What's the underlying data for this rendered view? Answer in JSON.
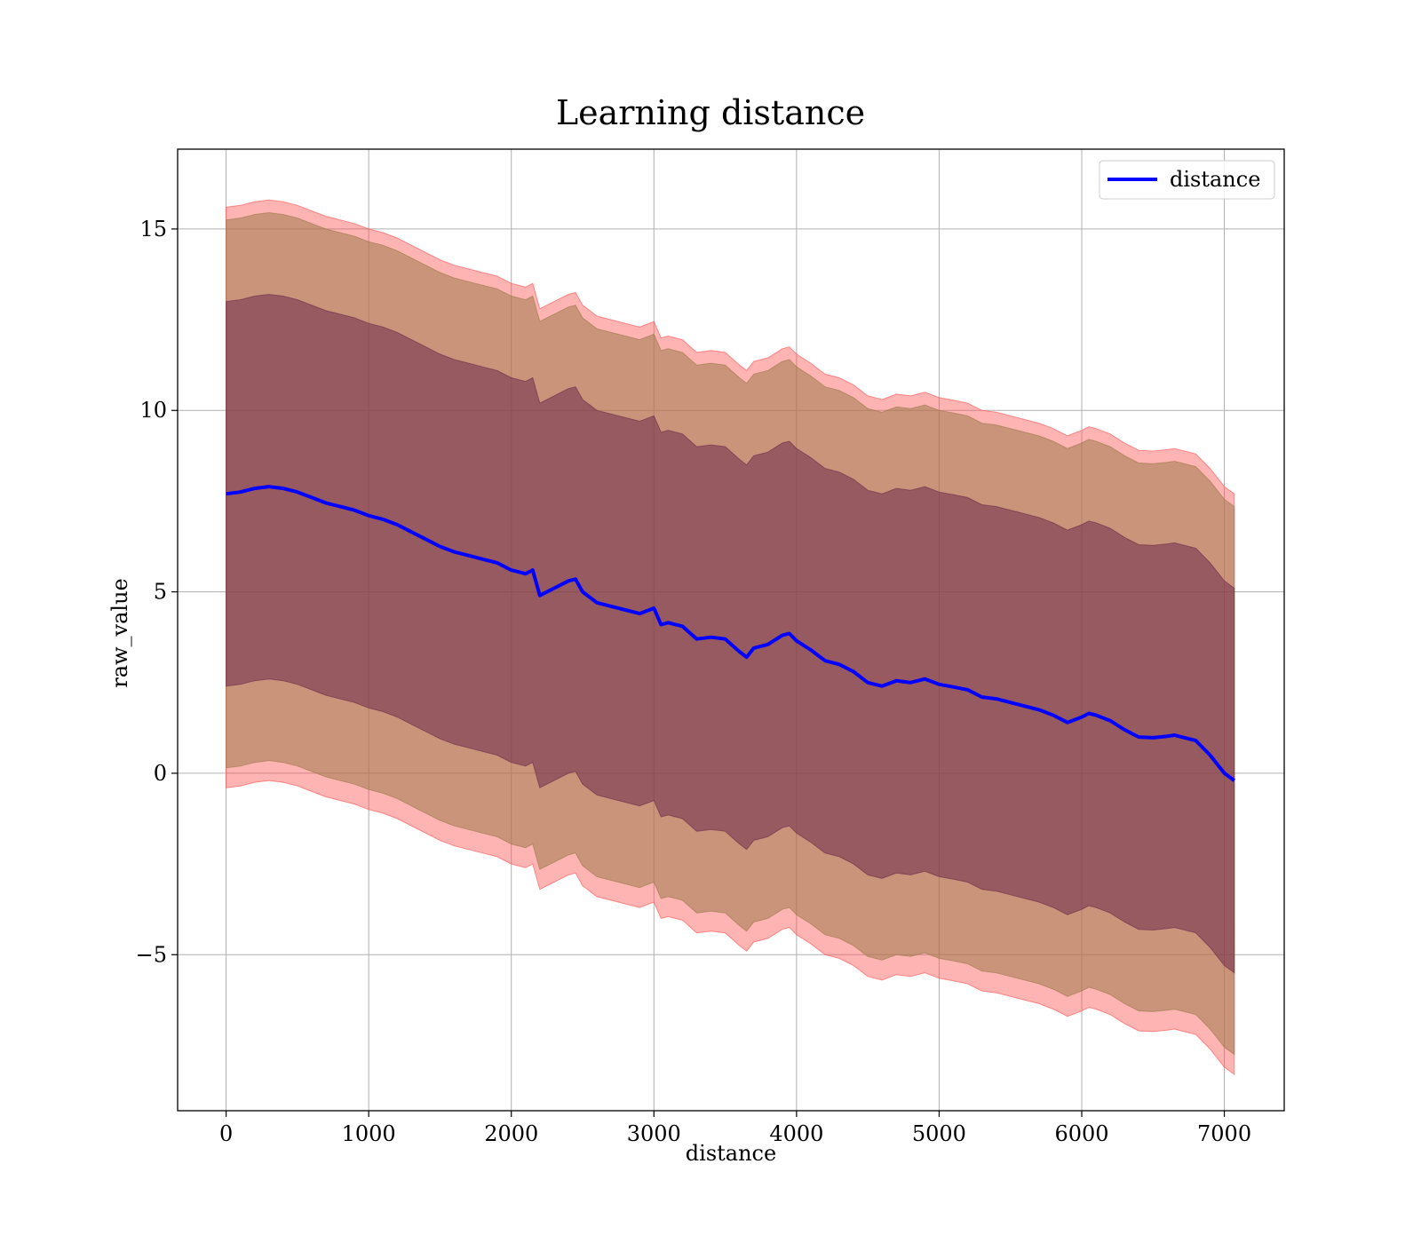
{
  "chart_data": {
    "type": "area",
    "title": "Learning distance",
    "xlabel": "distance",
    "ylabel": "raw_value",
    "xlim": [
      -340,
      7420
    ],
    "ylim": [
      -9.3,
      17.2
    ],
    "xticks": [
      0,
      1000,
      2000,
      3000,
      4000,
      5000,
      6000,
      7000
    ],
    "xtick_labels": [
      "0",
      "1000",
      "2000",
      "3000",
      "4000",
      "5000",
      "6000",
      "7000"
    ],
    "yticks": [
      -5,
      0,
      5,
      10,
      15
    ],
    "ytick_labels": [
      "−5",
      "0",
      "5",
      "10",
      "15"
    ],
    "grid": true,
    "legend": {
      "position": "top-right",
      "entries": [
        "distance"
      ]
    },
    "colors": {
      "line": "#0000ff",
      "outer_band": "#ff4d4d",
      "middle_band": "#9c7a4a",
      "inner_band": "#6e2a4a",
      "grid": "#b0b0b0"
    },
    "x": [
      0,
      100,
      200,
      300,
      400,
      500,
      600,
      700,
      800,
      900,
      1000,
      1100,
      1200,
      1300,
      1400,
      1500,
      1600,
      1700,
      1800,
      1900,
      2000,
      2100,
      2150,
      2200,
      2300,
      2400,
      2450,
      2500,
      2600,
      2700,
      2800,
      2900,
      3000,
      3050,
      3100,
      3200,
      3300,
      3400,
      3500,
      3600,
      3650,
      3700,
      3800,
      3900,
      3950,
      4000,
      4100,
      4200,
      4300,
      4400,
      4500,
      4600,
      4700,
      4800,
      4900,
      5000,
      5100,
      5200,
      5300,
      5400,
      5500,
      5600,
      5700,
      5800,
      5900,
      6000,
      6050,
      6100,
      6200,
      6300,
      6400,
      6500,
      6600,
      6650,
      6700,
      6800,
      6900,
      7000,
      7070
    ],
    "series": [
      {
        "name": "distance",
        "values": [
          7.7,
          7.75,
          7.85,
          7.9,
          7.85,
          7.75,
          7.6,
          7.45,
          7.35,
          7.25,
          7.1,
          7.0,
          6.85,
          6.65,
          6.45,
          6.25,
          6.1,
          6.0,
          5.9,
          5.8,
          5.6,
          5.5,
          5.6,
          4.9,
          5.1,
          5.3,
          5.35,
          5.0,
          4.7,
          4.6,
          4.5,
          4.4,
          4.55,
          4.1,
          4.15,
          4.05,
          3.7,
          3.75,
          3.7,
          3.35,
          3.2,
          3.45,
          3.55,
          3.8,
          3.85,
          3.65,
          3.4,
          3.1,
          3.0,
          2.8,
          2.5,
          2.4,
          2.55,
          2.5,
          2.6,
          2.45,
          2.38,
          2.3,
          2.1,
          2.05,
          1.95,
          1.85,
          1.75,
          1.6,
          1.4,
          1.55,
          1.65,
          1.6,
          1.45,
          1.2,
          1.0,
          0.98,
          1.02,
          1.05,
          1.0,
          0.9,
          0.5,
          0.0,
          -0.2
        ]
      },
      {
        "name": "",
        "band_offsets": [
          -8.1,
          7.9
        ]
      },
      {
        "name": "",
        "band_offsets": [
          -7.55,
          7.55
        ]
      },
      {
        "name": "",
        "band_offsets": [
          -5.3,
          5.3
        ]
      }
    ]
  }
}
